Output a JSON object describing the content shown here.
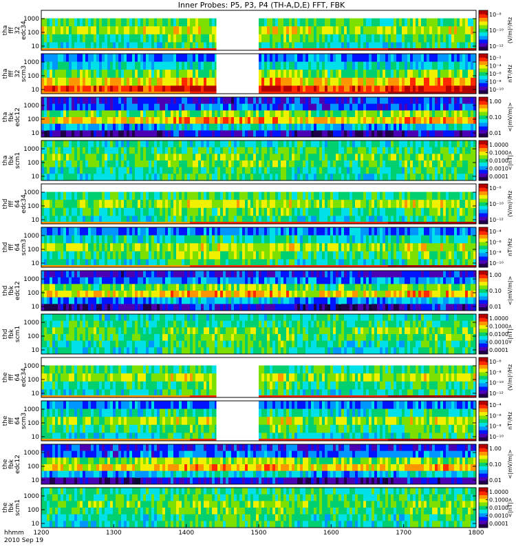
{
  "chart_data": {
    "type": "heatmap",
    "title": "Inner Probes: P5, P3, P4 (TH-A,D,E) FFT, FBK",
    "x_axis": {
      "range_hhmm": [
        "12:00",
        "18:00"
      ],
      "tick_labels": [
        "1200",
        "1300",
        "1400",
        "1500",
        "1600",
        "1700",
        "1800"
      ],
      "row_label": "hhmm",
      "date_label": "2010 Sep 19"
    },
    "colorbar_colors": [
      "#20004a",
      "#4b00b4",
      "#0014ff",
      "#0096ff",
      "#00e0e8",
      "#00d070",
      "#7ce000",
      "#f0f000",
      "#ff9600",
      "#ff2800",
      "#b40000"
    ],
    "panels": [
      {
        "probe": "tha",
        "l1": "tha",
        "l2": "fff",
        "l3": "32",
        "l4": "edc34",
        "kind": "fff-e",
        "ylim": [
          5,
          4000
        ],
        "y_tick_labels": [
          "1000",
          "100",
          "10"
        ],
        "cb_ticks": [
          "10⁻⁸",
          "10⁻¹⁰",
          "10⁻¹²"
        ],
        "cb_unit": "(V/m)²/Hz",
        "gaps": [
          [
            "14:25",
            "15:00"
          ]
        ],
        "band_levels": [
          0.38,
          0.52,
          0.62,
          0.5,
          0.42
        ]
      },
      {
        "probe": "tha",
        "l1": "tha",
        "l2": "fff",
        "l3": "32",
        "l4": "scm3",
        "kind": "fff-b",
        "ylim": [
          5,
          4000
        ],
        "y_tick_labels": [
          "1000",
          "100",
          "10"
        ],
        "cb_ticks": [
          "10⁻²",
          "10⁻⁴",
          "10⁻⁶",
          "10⁻⁸",
          "10⁻¹⁰"
        ],
        "cb_unit": "nT²/Hz",
        "gaps": [
          [
            "14:25",
            "15:00"
          ]
        ],
        "band_levels": [
          0.3,
          0.42,
          0.55,
          0.7,
          0.85
        ]
      },
      {
        "probe": "tha",
        "l1": "tha",
        "l2": "fbk",
        "l4": "edc12",
        "kind": "fbk-e",
        "ylim": [
          5,
          4000
        ],
        "y_tick_labels": [
          "1000",
          "100",
          "10"
        ],
        "cb_ticks": [
          "1.00",
          "0.10",
          "0.01"
        ],
        "cb_unit": "<|mV/m|>",
        "gaps": [],
        "band_levels": [
          0.2,
          0.25,
          0.55,
          0.7,
          0.35,
          0.1
        ]
      },
      {
        "probe": "tha",
        "l1": "tha",
        "l2": "fbk",
        "l4": "scm1",
        "kind": "fbk-b",
        "ylim": [
          5,
          4000
        ],
        "y_tick_labels": [
          "1000",
          "100",
          "10"
        ],
        "cb_ticks": [
          "1.0000",
          "0.1000",
          "0.0100",
          "0.0010",
          "0.0001"
        ],
        "cb_unit": "<|nT|>",
        "gaps": [],
        "band_levels": [
          0.45,
          0.5,
          0.55,
          0.52,
          0.45,
          0.42
        ]
      },
      {
        "probe": "thd",
        "l1": "thd",
        "l2": "fff",
        "l3": "64",
        "l4": "edc34",
        "kind": "fff-e",
        "ylim": [
          5,
          4000
        ],
        "y_tick_labels": [
          "1000",
          "100",
          "10"
        ],
        "cb_ticks": [
          "10⁻⁸",
          "10⁻¹⁰",
          "10⁻¹²"
        ],
        "cb_unit": "(V/m)²/Hz",
        "gaps": [],
        "band_levels": [
          0.38,
          0.5,
          0.6,
          0.48,
          0.42
        ]
      },
      {
        "probe": "thd",
        "l1": "thd",
        "l2": "fff",
        "l3": "64",
        "l4": "scm3",
        "kind": "fff-b",
        "ylim": [
          5,
          4000
        ],
        "y_tick_labels": [
          "1000",
          "100",
          "10"
        ],
        "cb_ticks": [
          "10⁻⁴",
          "10⁻⁶",
          "10⁻⁸",
          "10⁻¹⁰"
        ],
        "cb_unit": "nT²/Hz",
        "gaps": [],
        "band_levels": [
          0.3,
          0.45,
          0.6,
          0.5,
          0.42
        ]
      },
      {
        "probe": "thd",
        "l1": "thd",
        "l2": "fbk",
        "l4": "edc12",
        "kind": "fbk-e",
        "ylim": [
          5,
          4000
        ],
        "y_tick_labels": [
          "1000",
          "100",
          "10"
        ],
        "cb_ticks": [
          "1.00",
          "0.10",
          "0.01"
        ],
        "cb_unit": "<|mV/m|>",
        "gaps": [],
        "band_levels": [
          0.2,
          0.3,
          0.55,
          0.68,
          0.3,
          0.1
        ]
      },
      {
        "probe": "thd",
        "l1": "thd",
        "l2": "fbk",
        "l4": "scm1",
        "kind": "fbk-b",
        "ylim": [
          5,
          4000
        ],
        "y_tick_labels": [
          "1000",
          "100",
          "10"
        ],
        "cb_ticks": [
          "1.0000",
          "0.1000",
          "0.0100",
          "0.0010",
          "0.0001"
        ],
        "cb_unit": "<|nT|>",
        "gaps": [],
        "band_levels": [
          0.45,
          0.5,
          0.55,
          0.52,
          0.45,
          0.42
        ]
      },
      {
        "probe": "the",
        "l1": "the",
        "l2": "fff",
        "l3": "64",
        "l4": "edc34",
        "kind": "fff-e",
        "ylim": [
          5,
          4000
        ],
        "y_tick_labels": [
          "1000",
          "100",
          "10"
        ],
        "cb_ticks": [
          "10⁻⁶",
          "10⁻⁸",
          "10⁻¹⁰",
          "10⁻¹²"
        ],
        "cb_unit": "(V/m)²/Hz",
        "gaps": [
          [
            "14:25",
            "15:00"
          ]
        ],
        "band_levels": [
          0.38,
          0.5,
          0.6,
          0.48,
          0.42
        ]
      },
      {
        "probe": "the",
        "l1": "the",
        "l2": "fff",
        "l3": "64",
        "l4": "scm3",
        "kind": "fff-b",
        "ylim": [
          5,
          4000
        ],
        "y_tick_labels": [
          "1000",
          "100",
          "10"
        ],
        "cb_ticks": [
          "10⁻⁴",
          "10⁻⁶",
          "10⁻⁸",
          "10⁻¹⁰"
        ],
        "cb_unit": "nT²/Hz",
        "gaps": [
          [
            "14:25",
            "15:00"
          ]
        ],
        "band_levels": [
          0.3,
          0.45,
          0.6,
          0.5,
          0.42
        ]
      },
      {
        "probe": "the",
        "l1": "the",
        "l2": "fbk",
        "l4": "edc12",
        "kind": "fbk-e",
        "ylim": [
          5,
          4000
        ],
        "y_tick_labels": [
          "1000",
          "100",
          "10"
        ],
        "cb_ticks": [
          "1.00",
          "0.10",
          "0.01"
        ],
        "cb_unit": "<|mV/m|>",
        "gaps": [],
        "band_levels": [
          0.22,
          0.28,
          0.58,
          0.7,
          0.35,
          0.1
        ]
      },
      {
        "probe": "the",
        "l1": "the",
        "l2": "fbk",
        "l4": "scm1",
        "kind": "fbk-b",
        "ylim": [
          5,
          4000
        ],
        "y_tick_labels": [
          "1000",
          "100",
          "10"
        ],
        "cb_ticks": [
          "1.0000",
          "0.1000",
          "0.0100",
          "0.0010",
          "0.0001"
        ],
        "cb_unit": "<|nT|>",
        "gaps": [],
        "band_levels": [
          0.48,
          0.5,
          0.55,
          0.52,
          0.45,
          0.42
        ]
      }
    ]
  }
}
